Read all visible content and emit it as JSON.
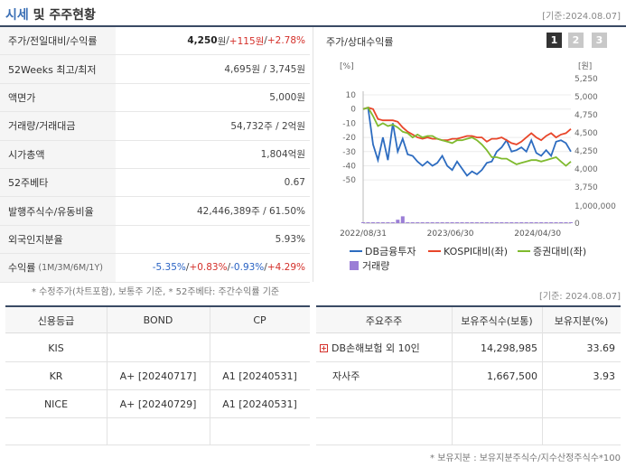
{
  "header": {
    "title_part1": "시세",
    "title_part2": " 및 주주현황",
    "date": "[기준:2024.08.07]"
  },
  "stock_table": [
    {
      "label": "주가/전일대비/수익률",
      "value_main": "4,250",
      "unit": "원",
      "sep1": " / ",
      "change": "+115원",
      "sep2": " / ",
      "rate": "+2.78%"
    },
    {
      "label": "52Weeks 최고/최저",
      "value": "4,695원 / 3,745원"
    },
    {
      "label": "액면가",
      "value": "5,000원"
    },
    {
      "label": "거래량/거래대금",
      "value": "54,732주 / 2억원"
    },
    {
      "label": "시가총액",
      "value": "1,804억원"
    },
    {
      "label": "52주베타",
      "value": "0.67"
    },
    {
      "label": "발행주식수/유동비율",
      "value": "42,446,389주 / 61.50%"
    },
    {
      "label": "외국인지분율",
      "value": "5.93%"
    },
    {
      "label": "수익률",
      "label_sub": "(1M/3M/6M/1Y)",
      "r1": "-5.35%",
      "r2": "+0.83%",
      "r3": "-0.93%",
      "r4": "+4.29%",
      "sep": " / "
    }
  ],
  "stock_footnote": "* 수정주가(차트포함), 보통주 기준, * 52주베타: 주간수익률 기준",
  "chart_panel": {
    "title": "주가/상대수익률",
    "buttons": [
      "1",
      "2",
      "3"
    ],
    "active_button": "1",
    "left_unit": "[%]",
    "right_unit": "[원]"
  },
  "chart_data": {
    "type": "line",
    "x_tick_labels": [
      "2022/08/31",
      "2023/06/30",
      "2024/04/30"
    ],
    "left_axis": {
      "ticks": [
        "10",
        "0",
        "-10",
        "-20",
        "-30",
        "-40",
        "-50"
      ],
      "ylim": [
        -55,
        10
      ]
    },
    "right_axis": {
      "ticks": [
        "5,250",
        "5,000",
        "4,750",
        "4,500",
        "4,250",
        "4,000",
        "3,750"
      ],
      "ylim": [
        3650,
        5250
      ]
    },
    "volume_axis": {
      "ticks": [
        "1,000,000",
        "0"
      ]
    },
    "series": [
      {
        "name": "DB금융투자",
        "color": "#2d6cc0",
        "values": [
          0,
          1,
          -25,
          -36,
          -20,
          -36,
          -10,
          -30,
          -21,
          -32,
          -33,
          -37,
          -40,
          -37,
          -40,
          -38,
          -33,
          -40,
          -43,
          -37,
          -42,
          -47,
          -44,
          -46,
          -43,
          -38,
          -37,
          -30,
          -27,
          -22,
          -30,
          -29,
          -27,
          -30,
          -22,
          -31,
          -33,
          -29,
          -33,
          -23,
          -22,
          -24,
          -30
        ]
      },
      {
        "name": "KOSPI대비(좌)",
        "color": "#e8462a",
        "values": [
          0,
          1,
          0,
          -7,
          -8,
          -8,
          -8,
          -9,
          -13,
          -16,
          -18,
          -20,
          -21,
          -20,
          -21,
          -21,
          -22,
          -22,
          -21,
          -21,
          -20,
          -19,
          -19,
          -20,
          -20,
          -23,
          -21,
          -21,
          -20,
          -22,
          -24,
          -25,
          -23,
          -20,
          -17,
          -20,
          -22,
          -19,
          -17,
          -20,
          -18,
          -17,
          -14
        ]
      },
      {
        "name": "증권대비(좌)",
        "color": "#7fba2e",
        "values": [
          0,
          1,
          -5,
          -12,
          -10,
          -12,
          -11,
          -13,
          -16,
          -17,
          -20,
          -18,
          -20,
          -19,
          -19,
          -21,
          -22,
          -23,
          -24,
          -22,
          -22,
          -21,
          -20,
          -22,
          -25,
          -29,
          -34,
          -34,
          -35,
          -35,
          -37,
          -39,
          -38,
          -37,
          -36,
          -36,
          -37,
          -36,
          -35,
          -34,
          -37,
          -40,
          -37
        ]
      }
    ],
    "volume": {
      "name": "거래량",
      "color": "#9b7ed6",
      "values": [
        0.04,
        0.03,
        0.02,
        0.03,
        0.04,
        0.03,
        0.03,
        0.2,
        0.4,
        0.05,
        0.03,
        0.03,
        0.02,
        0.03,
        0.03,
        0.04,
        0.03,
        0.02,
        0.04,
        0.03,
        0.03,
        0.04,
        0.03,
        0.02,
        0.03,
        0.03,
        0.02,
        0.03,
        0.02,
        0.03,
        0.02,
        0.03,
        0.02,
        0.03,
        0.02,
        0.03,
        0.02,
        0.02,
        0.03,
        0.02,
        0.03,
        0.02,
        0.02
      ]
    }
  },
  "bottom_date": "[기준: 2024.08.07]",
  "credit_table": {
    "headers": [
      "신용등급",
      "BOND",
      "CP"
    ],
    "rows": [
      {
        "agency": "KIS",
        "bond": "",
        "cp": ""
      },
      {
        "agency": "KR",
        "bond": "A+ [20240717]",
        "cp": "A1 [20240531]"
      },
      {
        "agency": "NICE",
        "bond": "A+ [20240729]",
        "cp": "A1 [20240531]"
      }
    ]
  },
  "holder_table": {
    "headers": [
      "주요주주",
      "보유주식수(보통)",
      "보유지분(%)"
    ],
    "rows": [
      {
        "name": "DB손해보험 외 10인",
        "shares": "14,298,985",
        "pct": "33.69",
        "expand": "+"
      },
      {
        "name": "자사주",
        "shares": "1,667,500",
        "pct": "3.93"
      }
    ]
  },
  "holder_footnote": "* 보유지분 : 보유지분주식수/지수산정주식수*100"
}
